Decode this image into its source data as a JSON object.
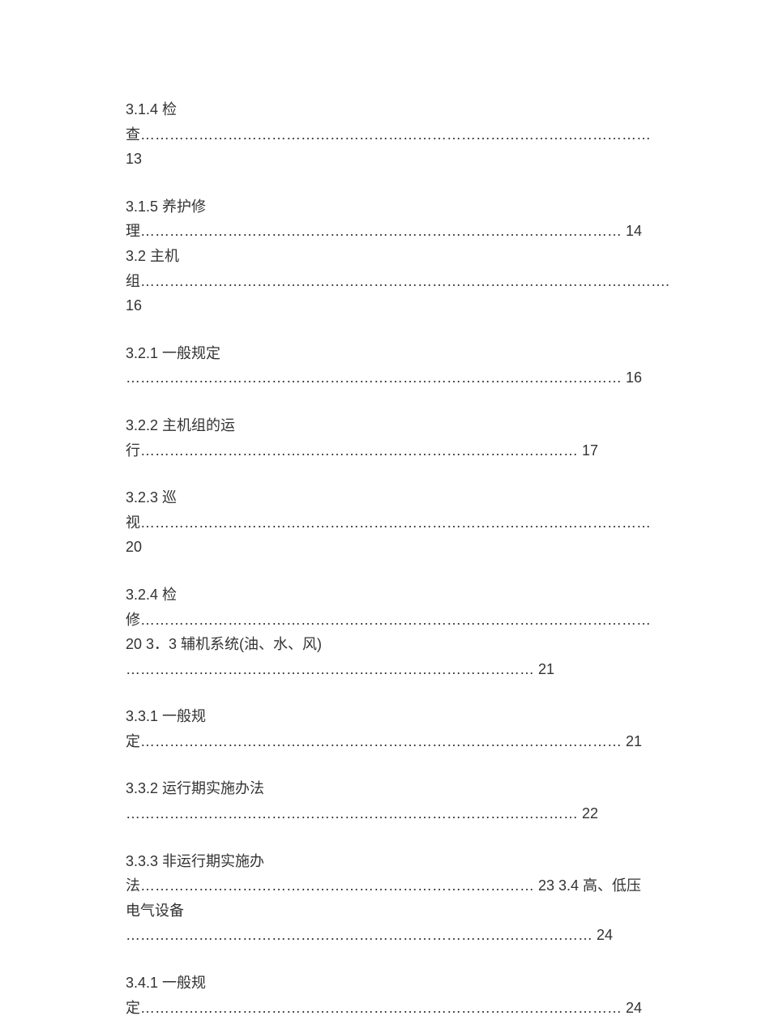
{
  "toc": {
    "entries": [
      "3.1.4 检查……………………………………………………………………………………………13",
      "3.1.5 养护修理……………………………………………………………………………………… 14 3.2 主机组………………………………………………………………………………………………. 16",
      "3.2.1 一般规定 ………………………………………………………………………………………… 16",
      "3.2.2 主机组的运行……………………………………………………………………………… 17",
      "3.2.3 巡视……………………………………………………………………………………………20",
      "3.2.4 检修…………………………………………………………………………………………… 20 3．3 辅机系统(油、水、风) ………………………………………………………………………… 21",
      "3.3.1 一般规定……………………………………………………………………………………… 21",
      "3.3.2 运行期实施办法 ………………………………………………………………………………… 22",
      "3.3.3 非运行期实施办法……………………………………………………………………… 23 3.4 高、低压电气设备 …………………………………………………………………………………… 24",
      "3.4.1 一般规定……………………………………………………………………………………… 24"
    ],
    "font_size": 18,
    "text_color": "#333333",
    "background_color": "#ffffff",
    "line_height": 1.7,
    "entry_spacing": 28
  }
}
